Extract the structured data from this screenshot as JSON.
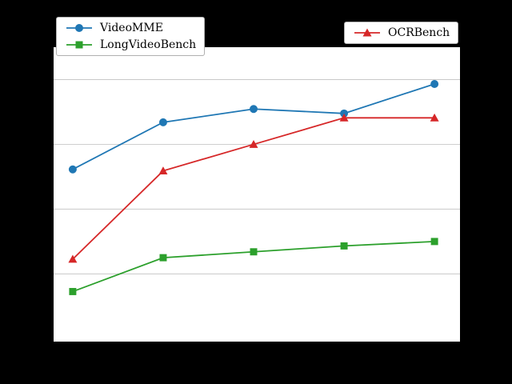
{
  "figure": {
    "background_color": "#000000",
    "plot_background_color": "#ffffff",
    "grid_color": "#c8c8c8"
  },
  "legend1": {
    "items": [
      {
        "label": "VideoMME",
        "color": "#1f77b4",
        "marker": "circle"
      },
      {
        "label": "LongVideoBench",
        "color": "#2ca02c",
        "marker": "square"
      }
    ]
  },
  "legend2": {
    "items": [
      {
        "label": "OCRBench",
        "color": "#d62728",
        "marker": "triangle"
      }
    ]
  },
  "chart_data": {
    "type": "line",
    "title": "",
    "xlabel": "",
    "ylabel": "",
    "axis_tick_labels_visible": false,
    "grid": true,
    "legend_position": [
      "upper left",
      "upper right"
    ],
    "x": [
      1,
      2,
      3,
      4,
      5
    ],
    "ylim": [
      0,
      100
    ],
    "gridlines_y": [
      23,
      45,
      67,
      89
    ],
    "series": [
      {
        "name": "VideoMME",
        "color": "#1f77b4",
        "marker": "circle",
        "values": [
          58.5,
          74.5,
          79,
          77.5,
          87.5
        ]
      },
      {
        "name": "OCRBench",
        "color": "#d62728",
        "marker": "triangle",
        "values": [
          28,
          58,
          67,
          76,
          76
        ]
      },
      {
        "name": "LongVideoBench",
        "color": "#2ca02c",
        "marker": "square",
        "values": [
          17,
          28.5,
          30.5,
          32.5,
          34
        ]
      }
    ]
  }
}
